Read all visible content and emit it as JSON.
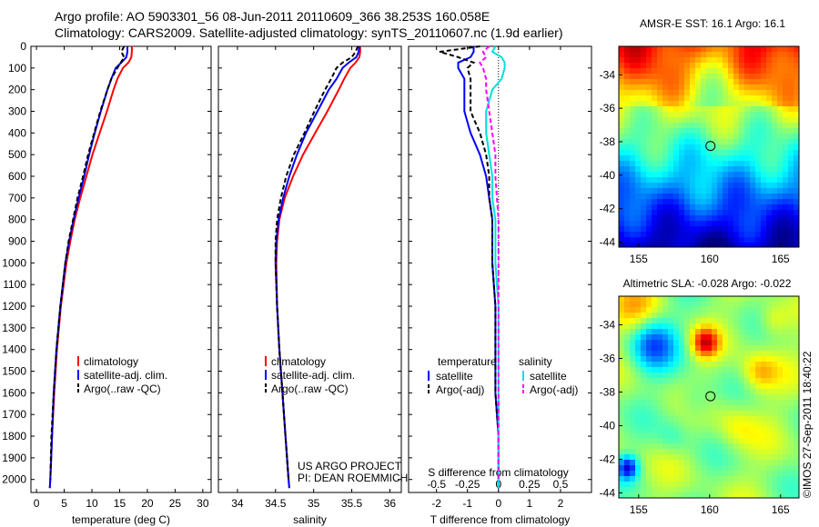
{
  "header": {
    "line1": "Argo profile: AO 5903301_56 08-Jun-2011 20110609_366 38.253S 160.058E",
    "line2": "Climatology: CARS2009. Satellite-adjusted climatology: synTS_20110607.nc (1.9d earlier)"
  },
  "colors": {
    "climatology": "#ff0000",
    "satellite": "#0000ff",
    "argo": "#000000",
    "sal_sat": "#00e0e0",
    "sal_argo": "#ff00ff"
  },
  "depth_axis": {
    "ticks": [
      0,
      100,
      200,
      300,
      400,
      500,
      600,
      700,
      800,
      900,
      1000,
      1100,
      1200,
      1300,
      1400,
      1500,
      1600,
      1700,
      1800,
      1900,
      2000
    ],
    "ylim": [
      0,
      2060
    ]
  },
  "chart_data": [
    {
      "type": "line",
      "name": "temperature-panel",
      "xlabel": "temperature (deg C)",
      "xlim": [
        -1,
        31.5
      ],
      "xticks": [
        0,
        5,
        10,
        15,
        20,
        25,
        30
      ],
      "depth": [
        0,
        25,
        50,
        75,
        100,
        150,
        200,
        300,
        400,
        500,
        600,
        700,
        800,
        900,
        1000,
        1200,
        1400,
        1600,
        1800,
        2000,
        2040
      ],
      "series": [
        {
          "name": "climatology",
          "color": "#ff0000",
          "dash": "",
          "values": [
            17.2,
            17.2,
            17.1,
            16.6,
            15.6,
            14.6,
            13.9,
            12.7,
            11.4,
            10.1,
            9.0,
            7.9,
            6.9,
            6.1,
            5.4,
            4.4,
            3.7,
            3.2,
            2.8,
            2.5,
            2.4
          ]
        },
        {
          "name": "satellite-adj. clim.",
          "color": "#0000ff",
          "dash": "",
          "values": [
            16.4,
            16.4,
            16.2,
            15.3,
            14.3,
            13.5,
            12.8,
            11.6,
            10.5,
            9.5,
            8.6,
            7.6,
            6.7,
            5.9,
            5.2,
            4.3,
            3.6,
            3.1,
            2.8,
            2.5,
            2.4
          ]
        },
        {
          "name": "Argo(..raw -QC)",
          "color": "#000000",
          "dash": "5,3",
          "values": [
            15.8,
            15.3,
            15.8,
            15.2,
            14.6,
            13.5,
            12.8,
            11.5,
            10.4,
            9.3,
            8.4,
            7.4,
            6.6,
            5.8,
            5.2,
            4.3,
            3.6,
            3.1,
            2.7,
            2.5,
            null
          ]
        }
      ],
      "legend": [
        "climatology",
        "satellite-adj. clim.",
        "Argo(..raw -QC)"
      ]
    },
    {
      "type": "line",
      "name": "salinity-panel",
      "xlabel": "salinity",
      "xlim": [
        33.75,
        36.15
      ],
      "xticks": [
        34,
        34.5,
        35,
        35.5,
        36
      ],
      "depth": [
        0,
        25,
        50,
        75,
        100,
        150,
        200,
        300,
        400,
        500,
        600,
        700,
        800,
        900,
        1000,
        1200,
        1400,
        1600,
        1800,
        2000,
        2040
      ],
      "series": [
        {
          "name": "climatology",
          "color": "#ff0000",
          "dash": "",
          "values": [
            35.61,
            35.61,
            35.6,
            35.55,
            35.48,
            35.4,
            35.33,
            35.18,
            35.02,
            34.86,
            34.73,
            34.62,
            34.55,
            34.52,
            34.51,
            34.52,
            34.55,
            34.59,
            34.63,
            34.67,
            34.68
          ]
        },
        {
          "name": "satellite-adj. clim.",
          "color": "#0000ff",
          "dash": "",
          "values": [
            35.6,
            35.59,
            35.56,
            35.46,
            35.38,
            35.3,
            35.2,
            35.05,
            34.9,
            34.78,
            34.68,
            34.6,
            34.54,
            34.51,
            34.5,
            34.52,
            34.55,
            34.59,
            34.63,
            34.67,
            34.68
          ]
        },
        {
          "name": "Argo(..raw -QC)",
          "color": "#000000",
          "dash": "5,3",
          "values": [
            35.58,
            35.55,
            35.5,
            35.38,
            35.3,
            35.23,
            35.15,
            35.01,
            34.88,
            34.74,
            34.64,
            34.57,
            34.52,
            34.5,
            34.5,
            34.52,
            34.55,
            34.59,
            34.63,
            34.67,
            null
          ]
        }
      ],
      "legend": [
        "climatology",
        "satellite-adj. clim.",
        "Argo(..raw -QC)"
      ],
      "annotation": [
        "US ARGO PROJECT",
        "PI: DEAN ROEMMICH"
      ]
    },
    {
      "type": "line",
      "name": "difference-panel",
      "xlabel": "T difference from climatology",
      "xlabel_top": "S difference from climatology",
      "xlim": [
        -2.9,
        3
      ],
      "xticks": [
        -2,
        -1,
        0,
        1,
        2
      ],
      "sticks": {
        "labels": [
          "-0.5",
          "-0.25",
          "0",
          "0.25",
          "0.5"
        ],
        "positions": [
          -2,
          -1,
          0,
          1,
          2
        ]
      },
      "depth": [
        0,
        25,
        50,
        75,
        100,
        150,
        200,
        300,
        400,
        500,
        600,
        700,
        800,
        900,
        1000,
        1200,
        1400,
        1600,
        1800,
        2000,
        2040
      ],
      "series": [
        {
          "name": "temperature satellite",
          "color": "#0000ff",
          "dash": "",
          "values": [
            -0.8,
            -0.8,
            -0.9,
            -1.3,
            -1.3,
            -1.1,
            -1.1,
            -1.1,
            -0.9,
            -0.6,
            -0.4,
            -0.3,
            -0.2,
            -0.2,
            -0.2,
            -0.1,
            -0.1,
            -0.1,
            0,
            0,
            0
          ]
        },
        {
          "name": "temperature Argo(-adj)",
          "color": "#000000",
          "dash": "5,3",
          "values": [
            -0.6,
            -1.9,
            -1.3,
            -0.8,
            -1.0,
            -0.9,
            -0.9,
            -0.9,
            -0.6,
            -0.4,
            -0.3,
            -0.3,
            -0.2,
            -0.2,
            -0.2,
            -0.1,
            -0.1,
            -0.1,
            0,
            0,
            null
          ]
        },
        {
          "name": "salinity satellite",
          "color": "#00e0e0",
          "dash": "",
          "values": [
            -0.1,
            -0.2,
            0.1,
            0.2,
            0.2,
            0.1,
            -0.2,
            -0.4,
            -0.4,
            -0.3,
            -0.2,
            -0.2,
            -0.1,
            -0.1,
            -0.1,
            0,
            0,
            0,
            0,
            0,
            0
          ]
        },
        {
          "name": "salinity Argo(-adj)",
          "color": "#ff00ff",
          "dash": "5,3",
          "values": [
            -0.3,
            -0.5,
            -0.4,
            -0.6,
            -0.5,
            -0.4,
            -0.4,
            -0.3,
            -0.2,
            -0.1,
            -0.1,
            -0.05,
            0,
            0,
            0,
            0,
            0,
            0,
            0,
            0,
            null
          ]
        }
      ],
      "legend_left": {
        "title": "temperature",
        "items": [
          "satellite",
          "Argo(-adj)"
        ]
      },
      "legend_right": {
        "title": "salinity",
        "items": [
          "satellite",
          "Argo(-adj)"
        ]
      }
    },
    {
      "type": "heatmap",
      "name": "sst-map",
      "title": "AMSR-E SST: 16.1 Argo: 16.1",
      "xticks": [
        155,
        160,
        165
      ],
      "yticks": [
        -34,
        -36,
        -38,
        -40,
        -42,
        -44
      ],
      "xlim": [
        153.6,
        166.3
      ],
      "ylim": [
        -44.3,
        -32.3
      ],
      "marker": [
        160.06,
        -38.25
      ]
    },
    {
      "type": "heatmap",
      "name": "sla-map",
      "title": "Altimetric SLA: -0.028 Argo: -0.022",
      "xticks": [
        155,
        160,
        165
      ],
      "yticks": [
        -34,
        -36,
        -38,
        -40,
        -42,
        -44
      ],
      "xlim": [
        153.6,
        166.3
      ],
      "ylim": [
        -44.3,
        -32.3
      ],
      "marker": [
        160.06,
        -38.25
      ]
    }
  ],
  "watermark": "©IMOS 27-Sep-2011 18:40:22"
}
